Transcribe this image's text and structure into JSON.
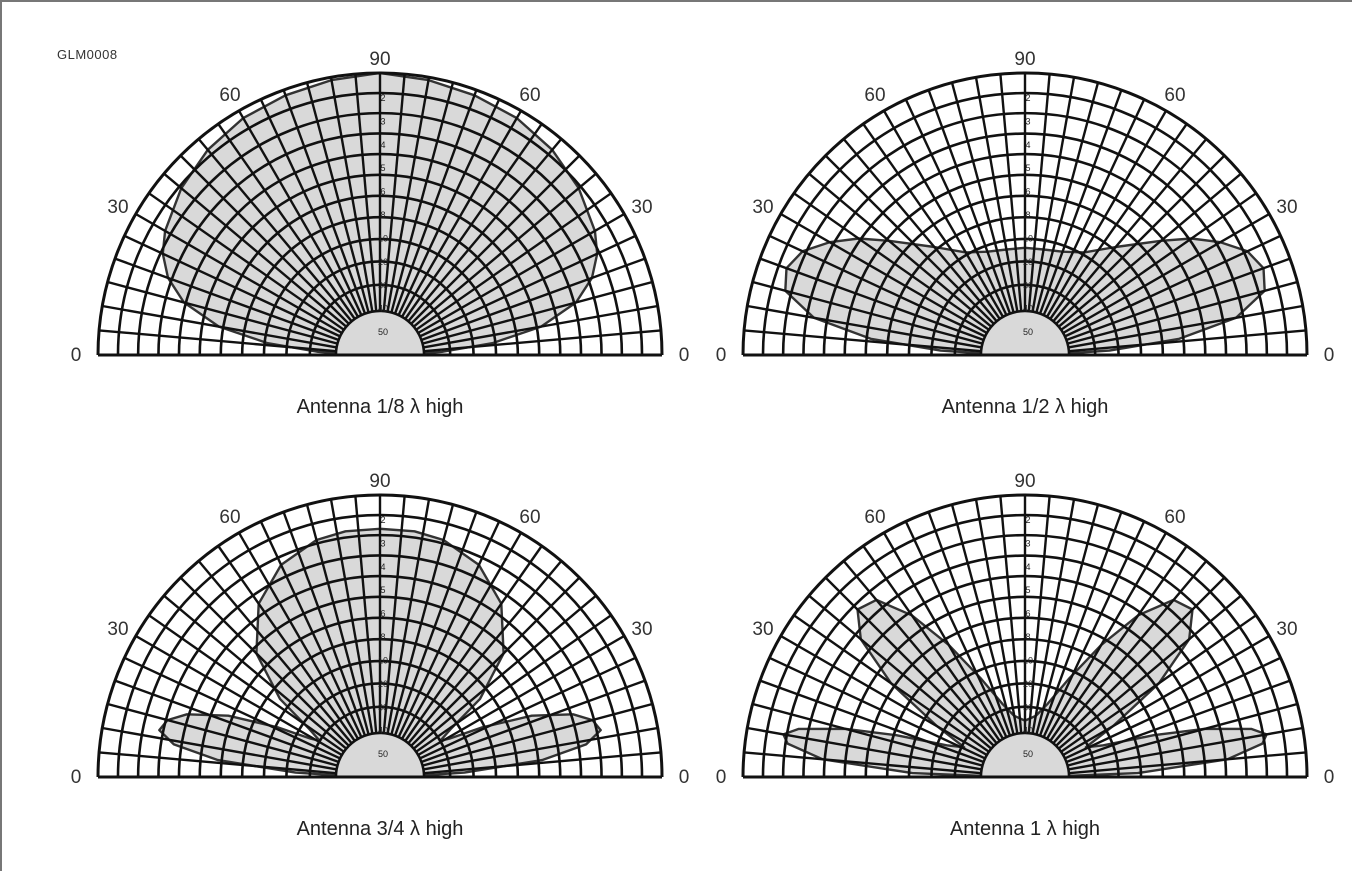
{
  "figure_id": "GLM0008",
  "angle_labels": {
    "zero": "0",
    "thirty": "30",
    "sixty": "60",
    "ninety": "90"
  },
  "db_ticks": [
    "2",
    "3",
    "4",
    "5",
    "6",
    "8",
    "10",
    "20",
    "30",
    "40",
    "50"
  ],
  "plots": [
    {
      "caption": "Antenna 1/8 λ  high",
      "pattern": [
        [
          0,
          0.06
        ],
        [
          3,
          0.22
        ],
        [
          6,
          0.4
        ],
        [
          10,
          0.58
        ],
        [
          15,
          0.72
        ],
        [
          20,
          0.8
        ],
        [
          25,
          0.85
        ],
        [
          30,
          0.88
        ],
        [
          40,
          0.92
        ],
        [
          50,
          0.95
        ],
        [
          60,
          0.97
        ],
        [
          70,
          0.98
        ],
        [
          80,
          0.99
        ],
        [
          90,
          1.0
        ]
      ]
    },
    {
      "caption": "Antenna 1/2 λ  high",
      "pattern": [
        [
          0,
          0.06
        ],
        [
          3,
          0.3
        ],
        [
          6,
          0.55
        ],
        [
          10,
          0.76
        ],
        [
          15,
          0.88
        ],
        [
          20,
          0.9
        ],
        [
          25,
          0.87
        ],
        [
          30,
          0.8
        ],
        [
          35,
          0.72
        ],
        [
          40,
          0.63
        ],
        [
          50,
          0.5
        ],
        [
          60,
          0.42
        ],
        [
          70,
          0.39
        ],
        [
          80,
          0.38
        ],
        [
          90,
          0.38
        ]
      ]
    },
    {
      "caption": "Antenna 3/4 λ  high",
      "pattern": [
        [
          0,
          0.06
        ],
        [
          3,
          0.3
        ],
        [
          6,
          0.58
        ],
        [
          9,
          0.74
        ],
        [
          12,
          0.8
        ],
        [
          15,
          0.78
        ],
        [
          18,
          0.72
        ],
        [
          22,
          0.58
        ],
        [
          26,
          0.4
        ],
        [
          29,
          0.28
        ],
        [
          31,
          0.25
        ],
        [
          34,
          0.3
        ],
        [
          38,
          0.45
        ],
        [
          45,
          0.62
        ],
        [
          55,
          0.75
        ],
        [
          65,
          0.83
        ],
        [
          75,
          0.87
        ],
        [
          82,
          0.88
        ],
        [
          90,
          0.88
        ]
      ]
    },
    {
      "caption": "Antenna 1 λ  high",
      "pattern": [
        [
          0,
          0.06
        ],
        [
          2,
          0.4
        ],
        [
          5,
          0.72
        ],
        [
          8,
          0.85
        ],
        [
          10,
          0.87
        ],
        [
          12,
          0.82
        ],
        [
          15,
          0.66
        ],
        [
          18,
          0.48
        ],
        [
          22,
          0.3
        ],
        [
          26,
          0.24
        ],
        [
          30,
          0.36
        ],
        [
          35,
          0.58
        ],
        [
          40,
          0.76
        ],
        [
          45,
          0.84
        ],
        [
          50,
          0.82
        ],
        [
          55,
          0.7
        ],
        [
          60,
          0.54
        ],
        [
          66,
          0.38
        ],
        [
          73,
          0.27
        ],
        [
          80,
          0.22
        ],
        [
          90,
          0.2
        ]
      ]
    }
  ]
}
